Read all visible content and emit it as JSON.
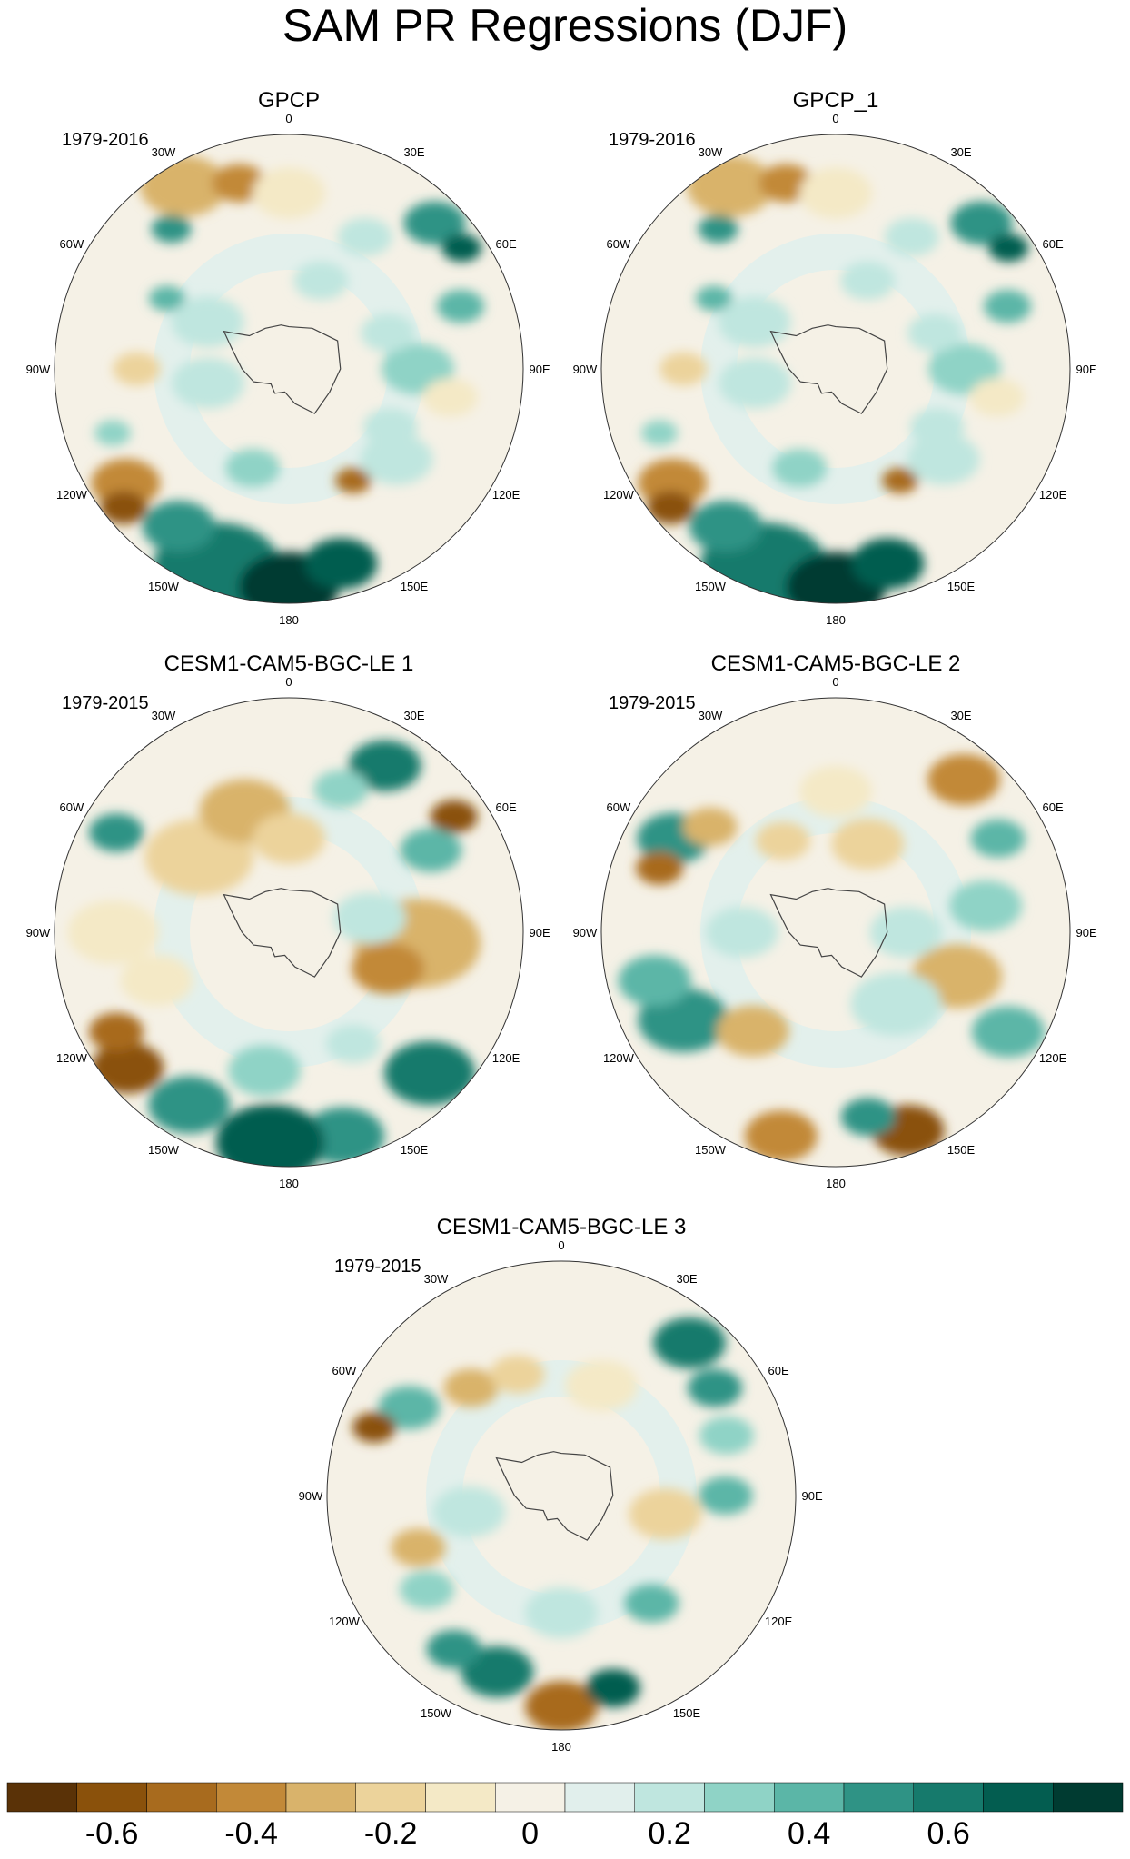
{
  "title": "SAM PR Regressions (DJF)",
  "colors": {
    "scale": [
      "#5a3207",
      "#8a510b",
      "#a86b1e",
      "#c28938",
      "#d9b36b",
      "#ecd39b",
      "#f4e9c6",
      "#f5f1e6",
      "#e1efec",
      "#bfe6df",
      "#8fd3c6",
      "#5bb6a7",
      "#2f9385",
      "#167a6c",
      "#035d50",
      "#003b31"
    ],
    "land_outline": "#444444",
    "rim": "#333333"
  },
  "longitude_labels": [
    "0",
    "30E",
    "60E",
    "90E",
    "120E",
    "150E",
    "180",
    "150W",
    "120W",
    "90W",
    "60W",
    "30W"
  ],
  "panels": [
    {
      "title": "GPCP",
      "period": "1979-2016",
      "pattern": "obs"
    },
    {
      "title": "GPCP_1",
      "period": "1979-2016",
      "pattern": "obs"
    },
    {
      "title": "CESM1-CAM5-BGC-LE 1",
      "period": "1979-2015",
      "pattern": "le1"
    },
    {
      "title": "CESM1-CAM5-BGC-LE 2",
      "period": "1979-2015",
      "pattern": "le2"
    },
    {
      "title": "CESM1-CAM5-BGC-LE 3",
      "period": "1979-2015",
      "pattern": "le3"
    }
  ],
  "colorbar": {
    "labels": [
      "-0.6",
      "-0.4",
      "-0.2",
      "0",
      "0.2",
      "0.4",
      "0.6"
    ]
  }
}
